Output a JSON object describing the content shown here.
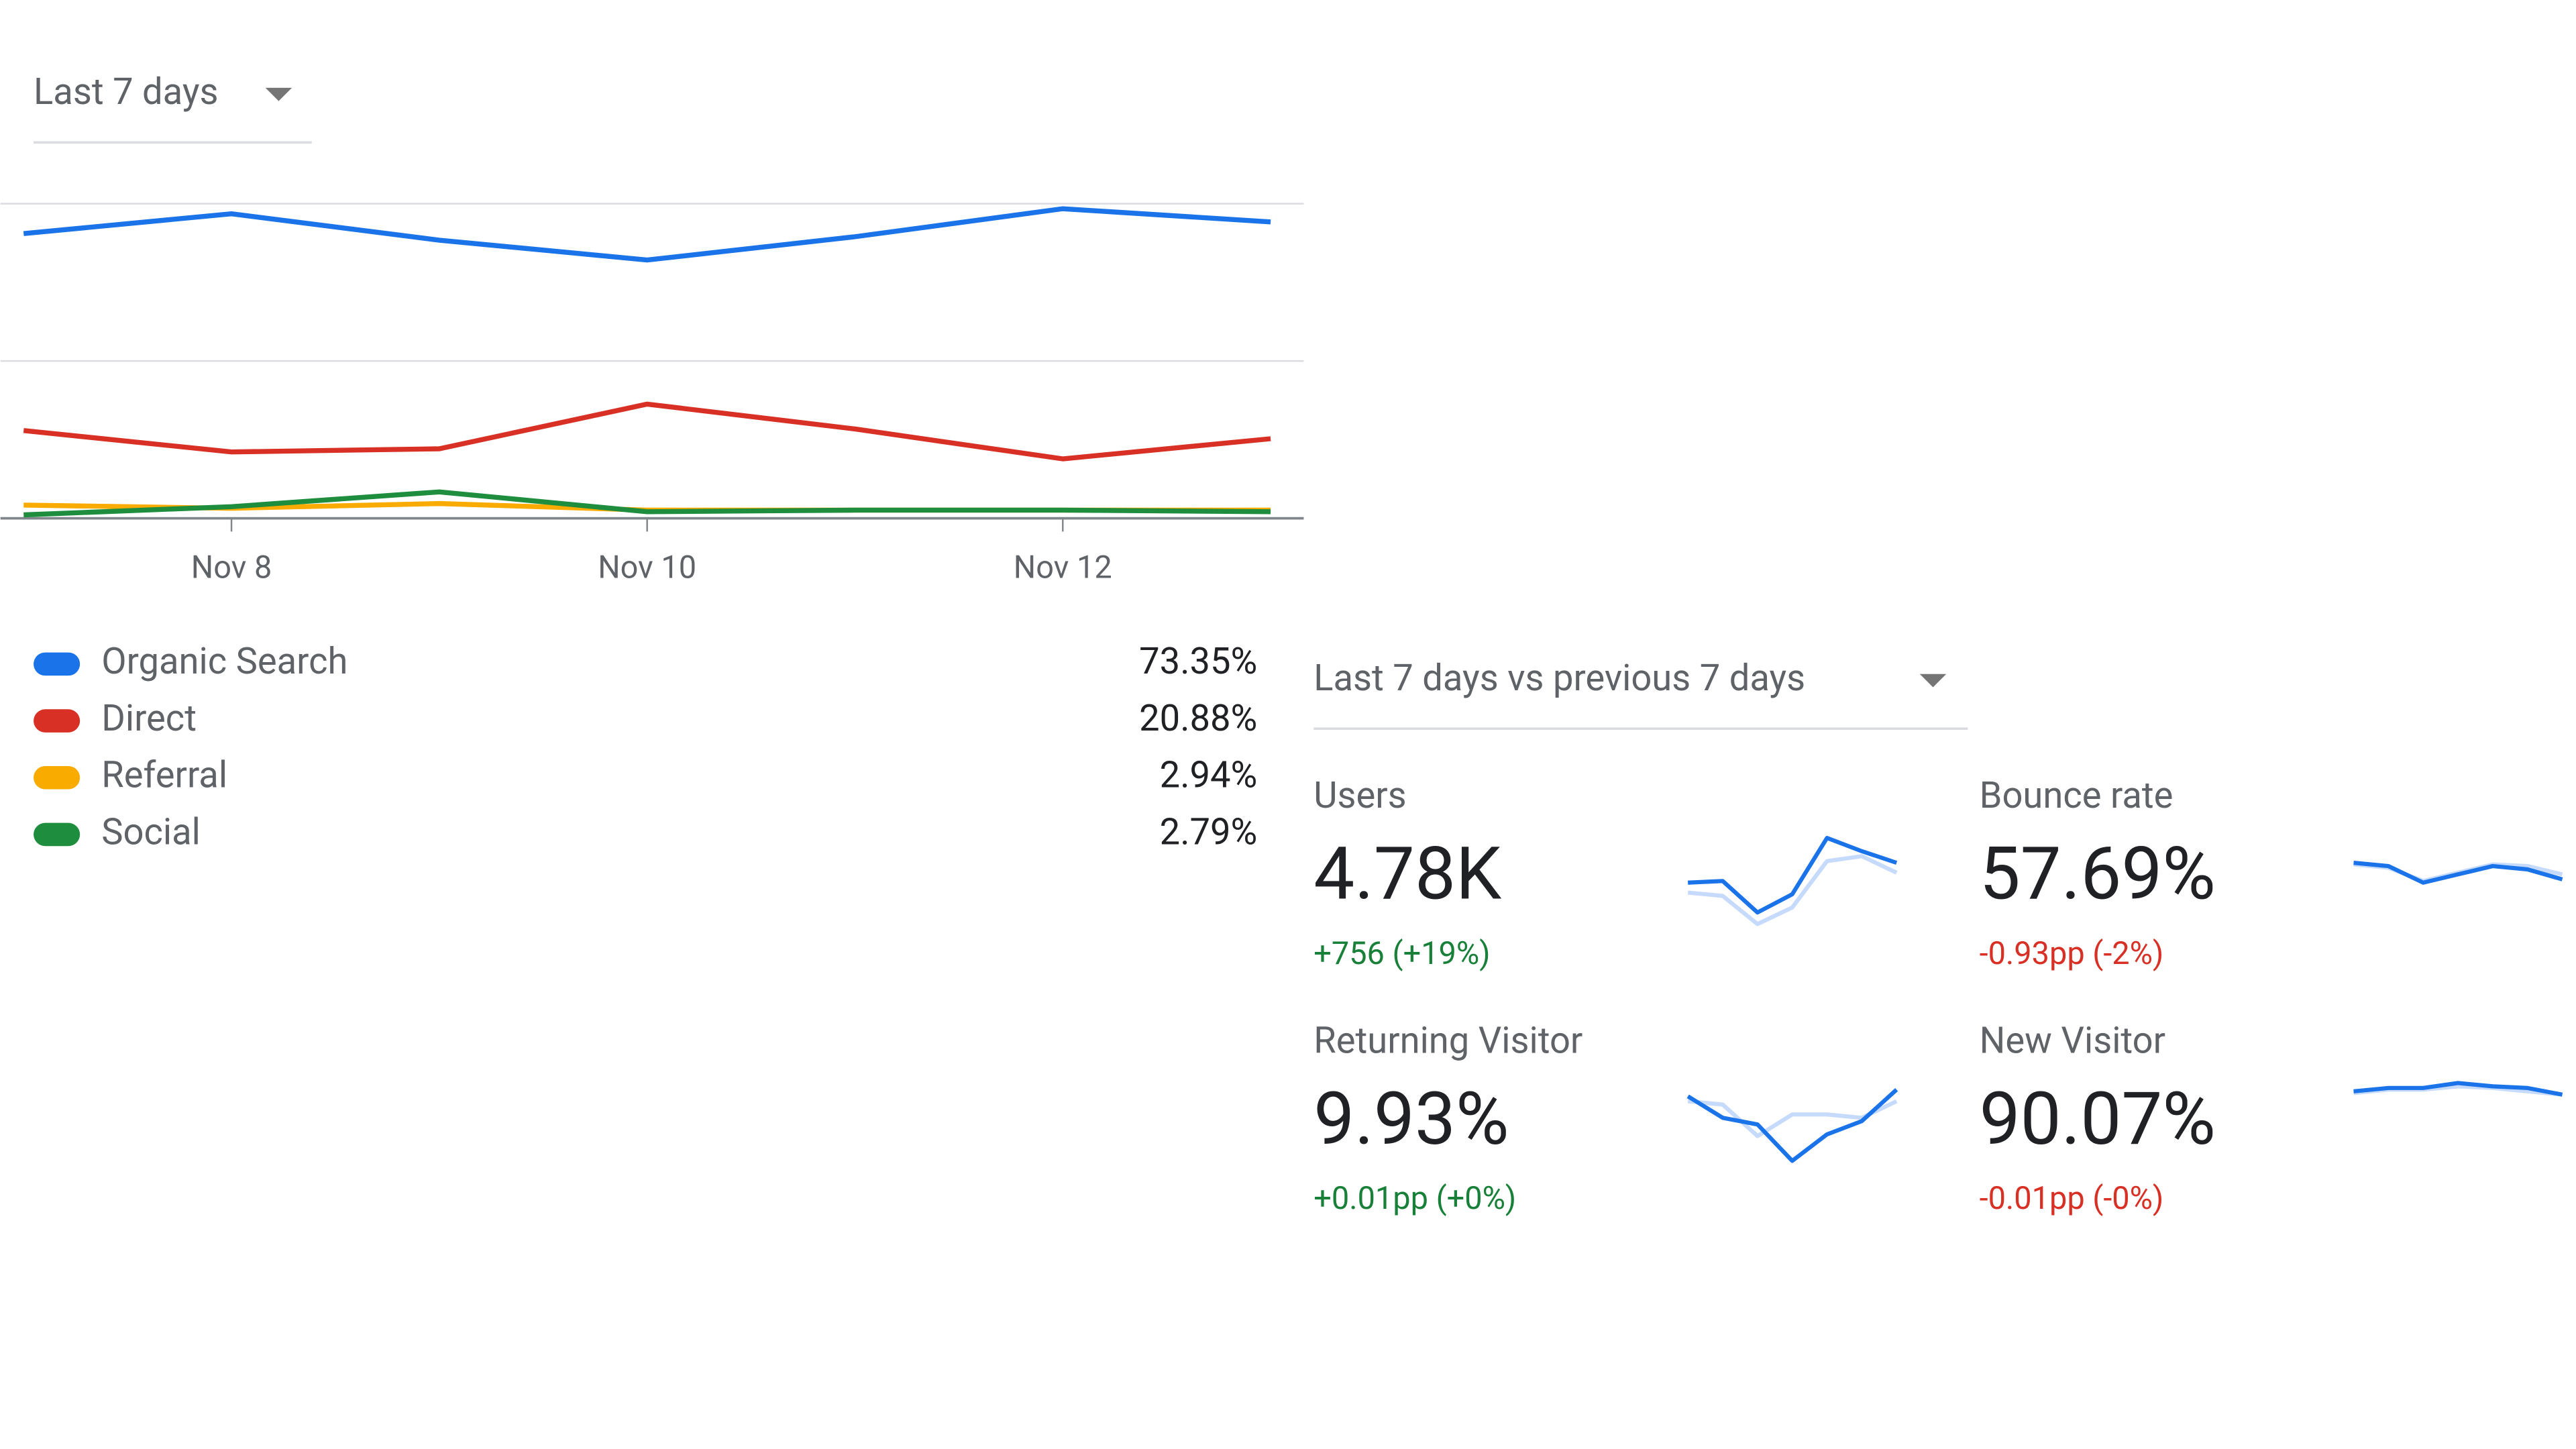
{
  "date_range": "Last 7 days",
  "chart_data": {
    "type": "line",
    "categories": [
      null,
      "Nov 8",
      null,
      "Nov 10",
      null,
      "Nov 12",
      null
    ],
    "ylim": [
      0,
      100
    ],
    "grid_values": [
      0,
      50,
      100
    ],
    "series": [
      {
        "name": "Organic Search",
        "color": "#1a73e8",
        "share": "73.35%",
        "values": [
          90.5,
          96.8,
          88.4,
          82.1,
          89.5,
          98.4,
          94.2
        ]
      },
      {
        "name": "Direct",
        "color": "#d93025",
        "share": "20.88%",
        "values": [
          27.9,
          21.1,
          22.1,
          36.3,
          28.4,
          18.9,
          25.3
        ]
      },
      {
        "name": "Referral",
        "color": "#f9ab00",
        "share": "2.94%",
        "values": [
          4.2,
          3.2,
          4.7,
          2.6,
          2.6,
          2.6,
          2.6
        ]
      },
      {
        "name": "Social",
        "color": "#1e8e3e",
        "share": "2.79%",
        "values": [
          1.1,
          3.7,
          8.4,
          2.1,
          2.6,
          2.6,
          2.1
        ]
      }
    ]
  },
  "comparison": "Last 7 days vs previous 7 days",
  "metrics": [
    {
      "label": "Users",
      "value": "4.78K",
      "change": "+756 (+19%)",
      "trend": "up",
      "current": [
        32,
        33,
        14,
        25,
        59,
        51,
        44
      ],
      "previous": [
        26,
        24,
        7,
        17,
        45,
        48,
        38
      ]
    },
    {
      "label": "Bounce rate",
      "value": "57.69%",
      "change": "-0.93pp (-2%)",
      "trend": "down",
      "current": [
        44,
        42,
        32,
        37,
        42,
        40,
        34
      ],
      "previous": [
        43,
        41,
        33,
        38,
        43,
        42,
        37
      ]
    },
    {
      "label": "Returning Visitor",
      "value": "9.93%",
      "change": "+0.01pp (+0%)",
      "trend": "up",
      "current": [
        51,
        38,
        34,
        12,
        28,
        36,
        55
      ],
      "previous": [
        48,
        46,
        27,
        40,
        40,
        38,
        48
      ]
    },
    {
      "label": "New Visitor",
      "value": "90.07%",
      "change": "-0.01pp (-0%)",
      "trend": "down",
      "current": [
        54,
        56,
        56,
        59,
        57,
        56,
        52
      ],
      "previous": [
        53,
        55,
        55,
        57,
        56,
        54,
        52
      ]
    }
  ]
}
